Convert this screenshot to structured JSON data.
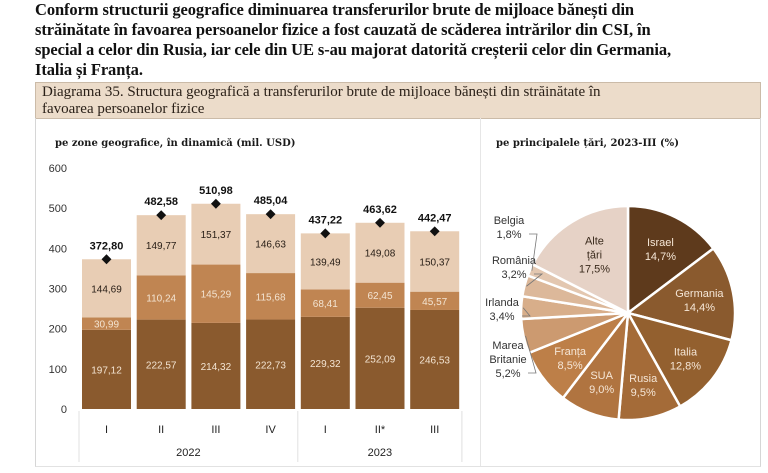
{
  "intro": {
    "lines": [
      "Conform structurii geografice diminuarea transferurilor brute de mijloace bănești din",
      "străinătate în favoarea persoanelor fizice a fost cauzată de scăderea intrărilor din CSI, în",
      "special a celor din Rusia, iar cele din UE s-au majorat datorită creșterii celor din Germania,",
      "Italia și Franța."
    ]
  },
  "caption": {
    "line1": "Diagrama 35. Structura geografică a transferurilor brute de mijloace bănești din străinătate în",
    "line2": "favoarea persoanelor fizice"
  },
  "colors": {
    "dark": "#8a5a2e",
    "mid": "#c08552",
    "light": "#e8cdb4",
    "caption_bg": "#ecdcca"
  },
  "chart_data": [
    {
      "type": "bar",
      "stacked": true,
      "title": "pe zone geografice, în dinamică (mil. USD)",
      "xlabel": "",
      "ylabel": "",
      "ylim": [
        0,
        600
      ],
      "yticks": [
        0,
        100,
        200,
        300,
        400,
        500,
        600
      ],
      "grid": false,
      "categories": [
        "I",
        "II",
        "III",
        "IV",
        "I",
        "II*",
        "III"
      ],
      "groups": [
        {
          "label": "2022",
          "count": 4
        },
        {
          "label": "2023",
          "count": 3
        }
      ],
      "series": [
        {
          "name": "bottom",
          "color": "#8a5a2e",
          "values": [
            197.12,
            222.57,
            214.32,
            222.73,
            229.32,
            252.09,
            246.53
          ],
          "labels": [
            "197,12",
            "222,57",
            "214,32",
            "222,73",
            "229,32",
            "252,09",
            "246,53"
          ]
        },
        {
          "name": "middle",
          "color": "#c08552",
          "values": [
            30.99,
            110.24,
            145.29,
            115.68,
            68.41,
            62.45,
            45.57
          ],
          "labels": [
            "30,99",
            "110,24",
            "145,29",
            "115,68",
            "68,41",
            "62,45",
            "45,57"
          ]
        },
        {
          "name": "top",
          "color": "#e8cdb4",
          "values": [
            144.69,
            149.77,
            151.37,
            146.63,
            139.49,
            149.08,
            150.37
          ],
          "labels": [
            "144,69",
            "149,77",
            "151,37",
            "146,63",
            "139,49",
            "149,08",
            "150,37"
          ]
        }
      ],
      "totals": {
        "values": [
          372.8,
          482.58,
          510.98,
          485.04,
          437.22,
          463.62,
          442.47
        ],
        "labels": [
          "372,80",
          "482,58",
          "510,98",
          "485,04",
          "437,22",
          "463,62",
          "442,47"
        ]
      }
    },
    {
      "type": "pie",
      "title": "pe principalele țări, 2023-III (%)",
      "start": "12 o'clock, clockwise",
      "slices": [
        {
          "name": "Israel",
          "value": 14.7,
          "label": "14,7%",
          "color": "#5e3a1c"
        },
        {
          "name": "Germania",
          "value": 14.4,
          "label": "14,4%",
          "color": "#8a5a2e"
        },
        {
          "name": "Italia",
          "value": 12.8,
          "label": "12,8%",
          "color": "#93602f"
        },
        {
          "name": "Rusia",
          "value": 9.5,
          "label": "9,5%",
          "color": "#a46b38"
        },
        {
          "name": "SUA",
          "value": 9.0,
          "label": "9,0%",
          "color": "#b07440"
        },
        {
          "name": "Franța",
          "value": 8.5,
          "label": "8,5%",
          "color": "#bd7f48"
        },
        {
          "name": "Marea Britanie",
          "value": 5.2,
          "label": "5,2%",
          "color": "#cc9a70"
        },
        {
          "name": "Irlanda",
          "value": 3.4,
          "label": "3,4%",
          "color": "#d8ae8a"
        },
        {
          "name": "România",
          "value": 3.2,
          "label": "3,2%",
          "color": "#dcb89a"
        },
        {
          "name": "Belgia",
          "value": 1.8,
          "label": "1,8%",
          "color": "#e3c7b0"
        },
        {
          "name": "Alte țări",
          "value": 17.5,
          "label": "17,5%",
          "color": "#e6d2c6"
        }
      ]
    }
  ]
}
